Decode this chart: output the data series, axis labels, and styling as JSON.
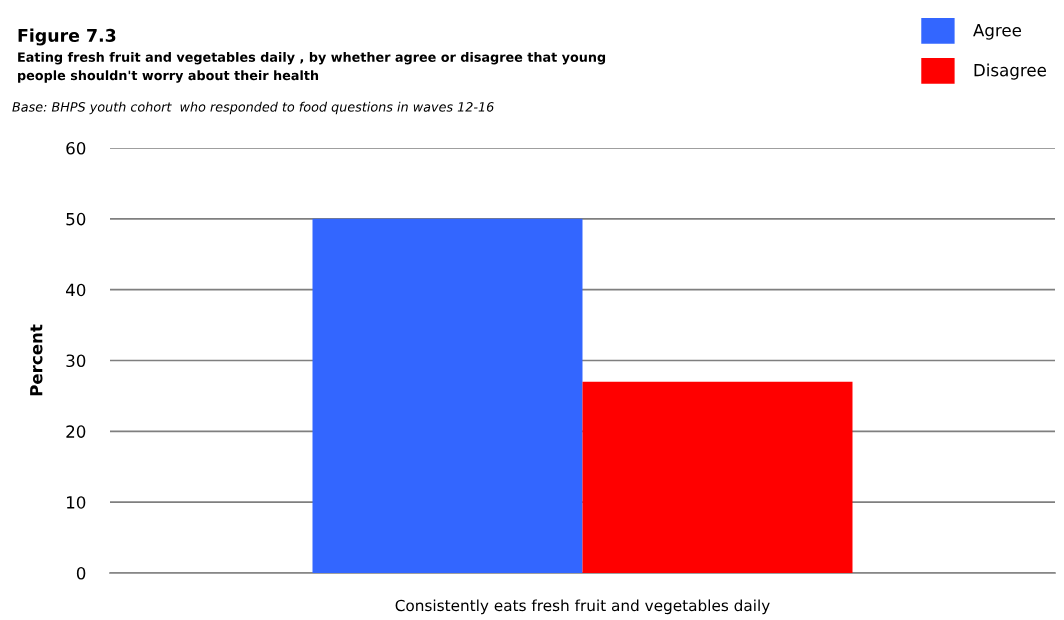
{
  "chart_data": {
    "type": "bar",
    "title": "Figure 7.3",
    "subtitle": "Eating fresh fruit and vegetables daily , by whether agree or disagree that young\npeople shouldn't worry about their health",
    "annotations": [
      "Base: BHPS youth cohort  who responded to food questions in waves 12-16"
    ],
    "ylabel": "Percent",
    "categories": [
      "Consistently eats fresh fruit and vegetables daily"
    ],
    "series": [
      {
        "name": "Agree",
        "color": "#3366ff",
        "values": [
          50
        ]
      },
      {
        "name": "Disagree",
        "color": "#ff0000",
        "values": [
          27
        ]
      }
    ],
    "ylim": [
      0,
      60
    ],
    "yticks": [
      0,
      10,
      20,
      30,
      40,
      50,
      60
    ],
    "grid": "y",
    "legend": "top right"
  }
}
